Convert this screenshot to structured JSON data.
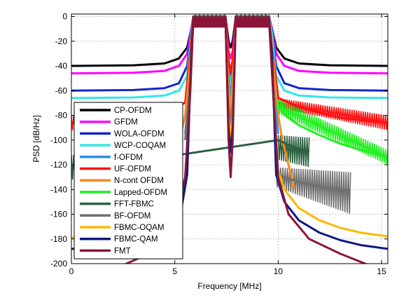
{
  "chart_data": {
    "type": "line",
    "title": "",
    "xlabel": "Frequency [MHz]",
    "ylabel": "PSD [dB/Hz]",
    "xlim": [
      0,
      15.3
    ],
    "ylim": [
      -200,
      2
    ],
    "xticks": [
      0,
      5,
      10,
      15
    ],
    "yticks": [
      0,
      -20,
      -40,
      -60,
      -80,
      -100,
      -120,
      -140,
      -160,
      -180,
      -200
    ],
    "grid": true,
    "legend_position": "left",
    "passband": {
      "band1": [
        5.9,
        7.5
      ],
      "band2": [
        7.9,
        9.6
      ],
      "notch_center": 7.7
    },
    "series": [
      {
        "name": "CP-OFDM",
        "color": "#000000",
        "points": [
          [
            0,
            -40
          ],
          [
            3,
            -39.5
          ],
          [
            4.5,
            -38
          ],
          [
            5.2,
            -34
          ],
          [
            5.6,
            -25
          ],
          [
            5.8,
            -10
          ],
          [
            5.9,
            0
          ],
          [
            7.45,
            0
          ],
          [
            7.6,
            -20
          ],
          [
            7.7,
            -25
          ],
          [
            7.8,
            -20
          ],
          [
            7.95,
            0
          ],
          [
            9.55,
            0
          ],
          [
            9.7,
            -10
          ],
          [
            9.9,
            -25
          ],
          [
            10.3,
            -34
          ],
          [
            11,
            -38
          ],
          [
            12.5,
            -39.5
          ],
          [
            15.3,
            -40
          ]
        ]
      },
      {
        "name": "GFDM",
        "color": "#ff00ff",
        "points": [
          [
            0,
            -46
          ],
          [
            3,
            -45.5
          ],
          [
            4.5,
            -44
          ],
          [
            5.2,
            -40
          ],
          [
            5.6,
            -30
          ],
          [
            5.8,
            -10
          ],
          [
            5.9,
            0
          ],
          [
            7.45,
            0
          ],
          [
            7.6,
            -28
          ],
          [
            7.7,
            -34
          ],
          [
            7.8,
            -28
          ],
          [
            7.95,
            0
          ],
          [
            9.55,
            0
          ],
          [
            9.7,
            -10
          ],
          [
            9.9,
            -30
          ],
          [
            10.3,
            -40
          ],
          [
            11,
            -44
          ],
          [
            12.5,
            -45.5
          ],
          [
            15.3,
            -46
          ]
        ]
      },
      {
        "name": "WOLA-OFDM",
        "color": "#1525c8",
        "points": [
          [
            0,
            -60
          ],
          [
            3,
            -59.5
          ],
          [
            4.5,
            -58
          ],
          [
            5.2,
            -54
          ],
          [
            5.6,
            -40
          ],
          [
            5.8,
            -12
          ],
          [
            5.9,
            0
          ],
          [
            7.45,
            0
          ],
          [
            7.6,
            -40
          ],
          [
            7.7,
            -48
          ],
          [
            7.8,
            -40
          ],
          [
            7.95,
            0
          ],
          [
            9.55,
            0
          ],
          [
            9.7,
            -12
          ],
          [
            9.9,
            -40
          ],
          [
            10.3,
            -54
          ],
          [
            11,
            -58
          ],
          [
            12.5,
            -59.5
          ],
          [
            15.3,
            -60
          ]
        ]
      },
      {
        "name": "WCP-COQAM",
        "color": "#33e6e6",
        "points": [
          [
            0,
            -66
          ],
          [
            3,
            -65.5
          ],
          [
            4.5,
            -64
          ],
          [
            5.2,
            -60
          ],
          [
            5.6,
            -48
          ],
          [
            5.8,
            -14
          ],
          [
            5.9,
            0
          ],
          [
            7.45,
            0
          ],
          [
            7.6,
            -45
          ],
          [
            7.7,
            -52
          ],
          [
            7.8,
            -45
          ],
          [
            7.95,
            0
          ],
          [
            9.55,
            0
          ],
          [
            9.7,
            -14
          ],
          [
            9.9,
            -48
          ],
          [
            10.3,
            -60
          ],
          [
            11,
            -64
          ],
          [
            12.5,
            -65.5
          ],
          [
            15.3,
            -66
          ]
        ]
      },
      {
        "name": "f-OFDM",
        "color": "#2b8fe8",
        "points": [
          [
            5.5,
            -95
          ],
          [
            5.7,
            -60
          ],
          [
            5.85,
            -15
          ],
          [
            5.95,
            0
          ],
          [
            7.45,
            0
          ],
          [
            7.55,
            -30
          ],
          [
            7.7,
            -70
          ],
          [
            7.85,
            -30
          ],
          [
            7.95,
            0
          ],
          [
            9.55,
            0
          ],
          [
            9.65,
            -15
          ],
          [
            9.8,
            -60
          ],
          [
            10.0,
            -95
          ]
        ]
      },
      {
        "name": "UF-OFDM",
        "color": "#ff1010",
        "points": [
          [
            0,
            -86
          ],
          [
            1.5,
            -86
          ],
          [
            2.9,
            -86
          ],
          [
            5.5,
            -70
          ],
          [
            5.8,
            -20
          ],
          [
            5.9,
            0
          ],
          [
            7.45,
            0
          ],
          [
            7.6,
            -35
          ],
          [
            7.7,
            -45
          ],
          [
            7.8,
            -35
          ],
          [
            7.95,
            0
          ],
          [
            9.55,
            0
          ],
          [
            9.7,
            -25
          ],
          [
            10.0,
            -66
          ],
          [
            11,
            -73
          ],
          [
            12,
            -78
          ],
          [
            13,
            -82
          ],
          [
            14,
            -84
          ],
          [
            15.3,
            -86
          ]
        ]
      },
      {
        "name": "N-cont OFDM",
        "color": "#f98a1c",
        "points": [
          [
            4.6,
            -140
          ],
          [
            5.1,
            -110
          ],
          [
            5.5,
            -80
          ],
          [
            5.7,
            -45
          ],
          [
            5.85,
            -15
          ],
          [
            5.95,
            0
          ],
          [
            7.45,
            0
          ],
          [
            7.55,
            -40
          ],
          [
            7.7,
            -80
          ],
          [
            7.85,
            -40
          ],
          [
            7.95,
            0
          ],
          [
            9.55,
            0
          ],
          [
            9.65,
            -15
          ],
          [
            9.8,
            -45
          ],
          [
            10.0,
            -80
          ],
          [
            10.2,
            -100
          ],
          [
            10.5,
            -120
          ],
          [
            10.8,
            -140
          ]
        ]
      },
      {
        "name": "Lapped-OFDM",
        "color": "#22ee22",
        "points": [
          [
            9.9,
            -72
          ],
          [
            10.5,
            -82
          ],
          [
            11,
            -88
          ],
          [
            12,
            -96
          ],
          [
            13,
            -103
          ],
          [
            14,
            -108
          ],
          [
            15.3,
            -114
          ]
        ]
      },
      {
        "name": "FFT-FBMC",
        "color": "#2a6040",
        "points": [
          [
            0,
            -122
          ],
          [
            1.2,
            -122
          ],
          [
            10,
            -100
          ],
          [
            10.5,
            -104
          ],
          [
            11,
            -107
          ],
          [
            11.5,
            -109
          ]
        ]
      },
      {
        "name": "BF-OFDM",
        "color": "#707070",
        "points": [
          [
            5.5,
            -100
          ],
          [
            5.8,
            -40
          ],
          [
            5.9,
            0
          ],
          [
            7.45,
            0
          ],
          [
            7.55,
            -60
          ],
          [
            7.7,
            -92
          ],
          [
            7.85,
            -60
          ],
          [
            7.95,
            0
          ],
          [
            9.55,
            0
          ],
          [
            10,
            -128
          ],
          [
            11,
            -134
          ],
          [
            12,
            -138
          ],
          [
            13,
            -140
          ],
          [
            13.5,
            -141
          ]
        ]
      },
      {
        "name": "FBMC-OQAM",
        "color": "#fdb900",
        "points": [
          [
            0,
            -179
          ],
          [
            3,
            -178
          ],
          [
            4.5,
            -172
          ],
          [
            5.2,
            -160
          ],
          [
            5.6,
            -120
          ],
          [
            5.8,
            -30
          ],
          [
            5.9,
            0
          ],
          [
            7.45,
            0
          ],
          [
            7.6,
            -80
          ],
          [
            7.7,
            -100
          ],
          [
            7.8,
            -80
          ],
          [
            7.95,
            0
          ],
          [
            9.55,
            0
          ],
          [
            9.7,
            -30
          ],
          [
            9.9,
            -120
          ],
          [
            10.3,
            -140
          ],
          [
            11,
            -155
          ],
          [
            12,
            -165
          ],
          [
            13,
            -171
          ],
          [
            14,
            -175
          ],
          [
            15.3,
            -178
          ]
        ]
      },
      {
        "name": "FBMC-QAM",
        "color": "#0a1a80",
        "points": [
          [
            0,
            -188
          ],
          [
            3,
            -187
          ],
          [
            4.5,
            -181
          ],
          [
            5.2,
            -168
          ],
          [
            5.6,
            -128
          ],
          [
            5.8,
            -30
          ],
          [
            5.9,
            0
          ],
          [
            7.45,
            0
          ],
          [
            7.6,
            -90
          ],
          [
            7.7,
            -110
          ],
          [
            7.8,
            -90
          ],
          [
            7.95,
            0
          ],
          [
            9.55,
            0
          ],
          [
            9.7,
            -30
          ],
          [
            9.9,
            -128
          ],
          [
            10.3,
            -150
          ],
          [
            11,
            -165
          ],
          [
            12,
            -175
          ],
          [
            13,
            -181
          ],
          [
            14,
            -185
          ],
          [
            15.3,
            -188
          ]
        ]
      },
      {
        "name": "FMT",
        "color": "#8b1538",
        "points": [
          [
            0,
            -212
          ],
          [
            2,
            -205
          ],
          [
            4,
            -190
          ],
          [
            5,
            -170
          ],
          [
            5.5,
            -130
          ],
          [
            5.75,
            -60
          ],
          [
            5.9,
            0
          ],
          [
            7.45,
            0
          ],
          [
            7.6,
            -100
          ],
          [
            7.7,
            -130
          ],
          [
            7.8,
            -100
          ],
          [
            7.95,
            0
          ],
          [
            9.55,
            0
          ],
          [
            9.75,
            -60
          ],
          [
            10.0,
            -130
          ],
          [
            10.5,
            -160
          ],
          [
            11.5,
            -180
          ],
          [
            13,
            -192
          ],
          [
            14.2,
            -200
          ],
          [
            15.3,
            -207
          ]
        ]
      }
    ],
    "ripple_bands": [
      {
        "series": "UF-OFDM",
        "x": [
          0,
          2.9
        ],
        "y_top": -80,
        "y_bottom": -92
      },
      {
        "series": "UF-OFDM",
        "x": [
          10.0,
          15.3
        ],
        "y_top": [
          -66,
          -80
        ],
        "y_bottom": [
          -74,
          -92
        ]
      },
      {
        "series": "Lapped-OFDM",
        "x": [
          9.9,
          15.3
        ],
        "y_top": [
          -66,
          -108
        ],
        "y_bottom": [
          -78,
          -120
        ]
      },
      {
        "series": "FFT-FBMC",
        "x": [
          0,
          1.2
        ],
        "y_top": -112,
        "y_bottom": -132
      },
      {
        "series": "FFT-FBMC",
        "x": [
          10.0,
          11.5
        ],
        "y_top": [
          -96,
          -98
        ],
        "y_bottom": [
          -116,
          -122
        ]
      },
      {
        "series": "BF-OFDM",
        "x": [
          9.9,
          13.5
        ],
        "y_top": [
          -122,
          -126
        ],
        "y_bottom": [
          -138,
          -160
        ]
      }
    ]
  }
}
